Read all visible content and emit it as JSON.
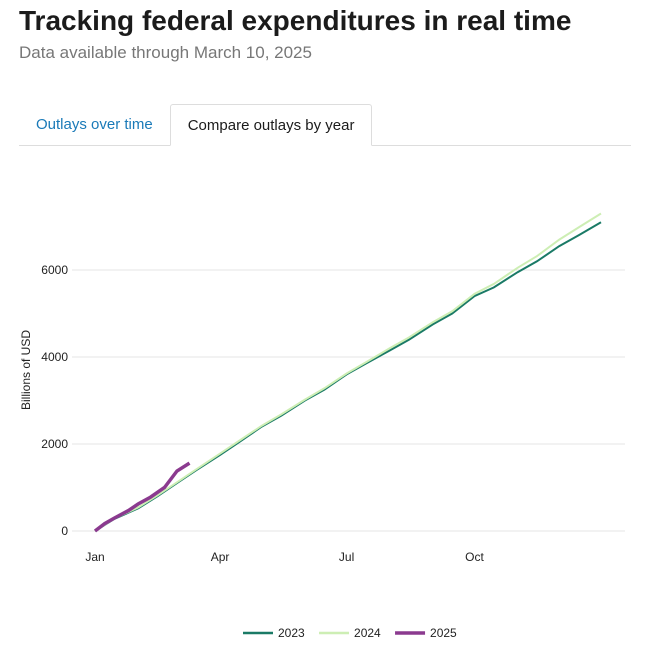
{
  "header": {
    "title": "Tracking federal expenditures in real time",
    "subtitle": "Data available through March 10, 2025"
  },
  "tabs": [
    {
      "label": "Outlays over time",
      "active": false
    },
    {
      "label": "Compare outlays by year",
      "active": true
    }
  ],
  "chart_data": {
    "type": "line",
    "title": "",
    "xlabel": "",
    "ylabel": "Billions of USD",
    "x_ticks": [
      {
        "date": "01-01",
        "label": "Jan"
      },
      {
        "date": "04-01",
        "label": "Apr"
      },
      {
        "date": "07-01",
        "label": "Jul"
      },
      {
        "date": "10-01",
        "label": "Oct"
      }
    ],
    "y_ticks": [
      0,
      2000,
      4000,
      6000
    ],
    "ylim": [
      0,
      7400
    ],
    "grid": true,
    "legend": "bottom",
    "series": [
      {
        "name": "2023",
        "color": "#1a7a66",
        "points": [
          [
            "01-01",
            0
          ],
          [
            "01-15",
            280
          ],
          [
            "02-01",
            520
          ],
          [
            "02-15",
            800
          ],
          [
            "03-01",
            1100
          ],
          [
            "03-15",
            1400
          ],
          [
            "04-01",
            1750
          ],
          [
            "04-15",
            2050
          ],
          [
            "05-01",
            2400
          ],
          [
            "05-15",
            2650
          ],
          [
            "06-01",
            3000
          ],
          [
            "06-15",
            3250
          ],
          [
            "07-01",
            3600
          ],
          [
            "07-15",
            3850
          ],
          [
            "08-01",
            4150
          ],
          [
            "08-15",
            4400
          ],
          [
            "09-01",
            4750
          ],
          [
            "09-15",
            5000
          ],
          [
            "10-01",
            5400
          ],
          [
            "10-15",
            5600
          ],
          [
            "11-01",
            5950
          ],
          [
            "11-15",
            6200
          ],
          [
            "12-01",
            6550
          ],
          [
            "12-15",
            6800
          ],
          [
            "12-31",
            7100
          ]
        ]
      },
      {
        "name": "2024",
        "color": "#cdeeb4",
        "points": [
          [
            "01-01",
            0
          ],
          [
            "01-15",
            290
          ],
          [
            "02-01",
            540
          ],
          [
            "02-15",
            820
          ],
          [
            "03-01",
            1120
          ],
          [
            "03-15",
            1420
          ],
          [
            "04-01",
            1780
          ],
          [
            "04-15",
            2080
          ],
          [
            "05-01",
            2420
          ],
          [
            "05-15",
            2680
          ],
          [
            "06-01",
            3020
          ],
          [
            "06-15",
            3280
          ],
          [
            "07-01",
            3620
          ],
          [
            "07-15",
            3880
          ],
          [
            "08-01",
            4200
          ],
          [
            "08-15",
            4450
          ],
          [
            "09-01",
            4800
          ],
          [
            "09-15",
            5050
          ],
          [
            "10-01",
            5450
          ],
          [
            "10-15",
            5680
          ],
          [
            "11-01",
            6050
          ],
          [
            "11-15",
            6320
          ],
          [
            "12-01",
            6700
          ],
          [
            "12-15",
            6980
          ],
          [
            "12-31",
            7300
          ]
        ]
      },
      {
        "name": "2025",
        "color": "#8b3a8f",
        "points": [
          [
            "01-01",
            0
          ],
          [
            "01-08",
            170
          ],
          [
            "01-15",
            300
          ],
          [
            "01-25",
            470
          ],
          [
            "02-01",
            620
          ],
          [
            "02-10",
            780
          ],
          [
            "02-20",
            1000
          ],
          [
            "03-01",
            1380
          ],
          [
            "03-10",
            1560
          ]
        ]
      }
    ]
  }
}
